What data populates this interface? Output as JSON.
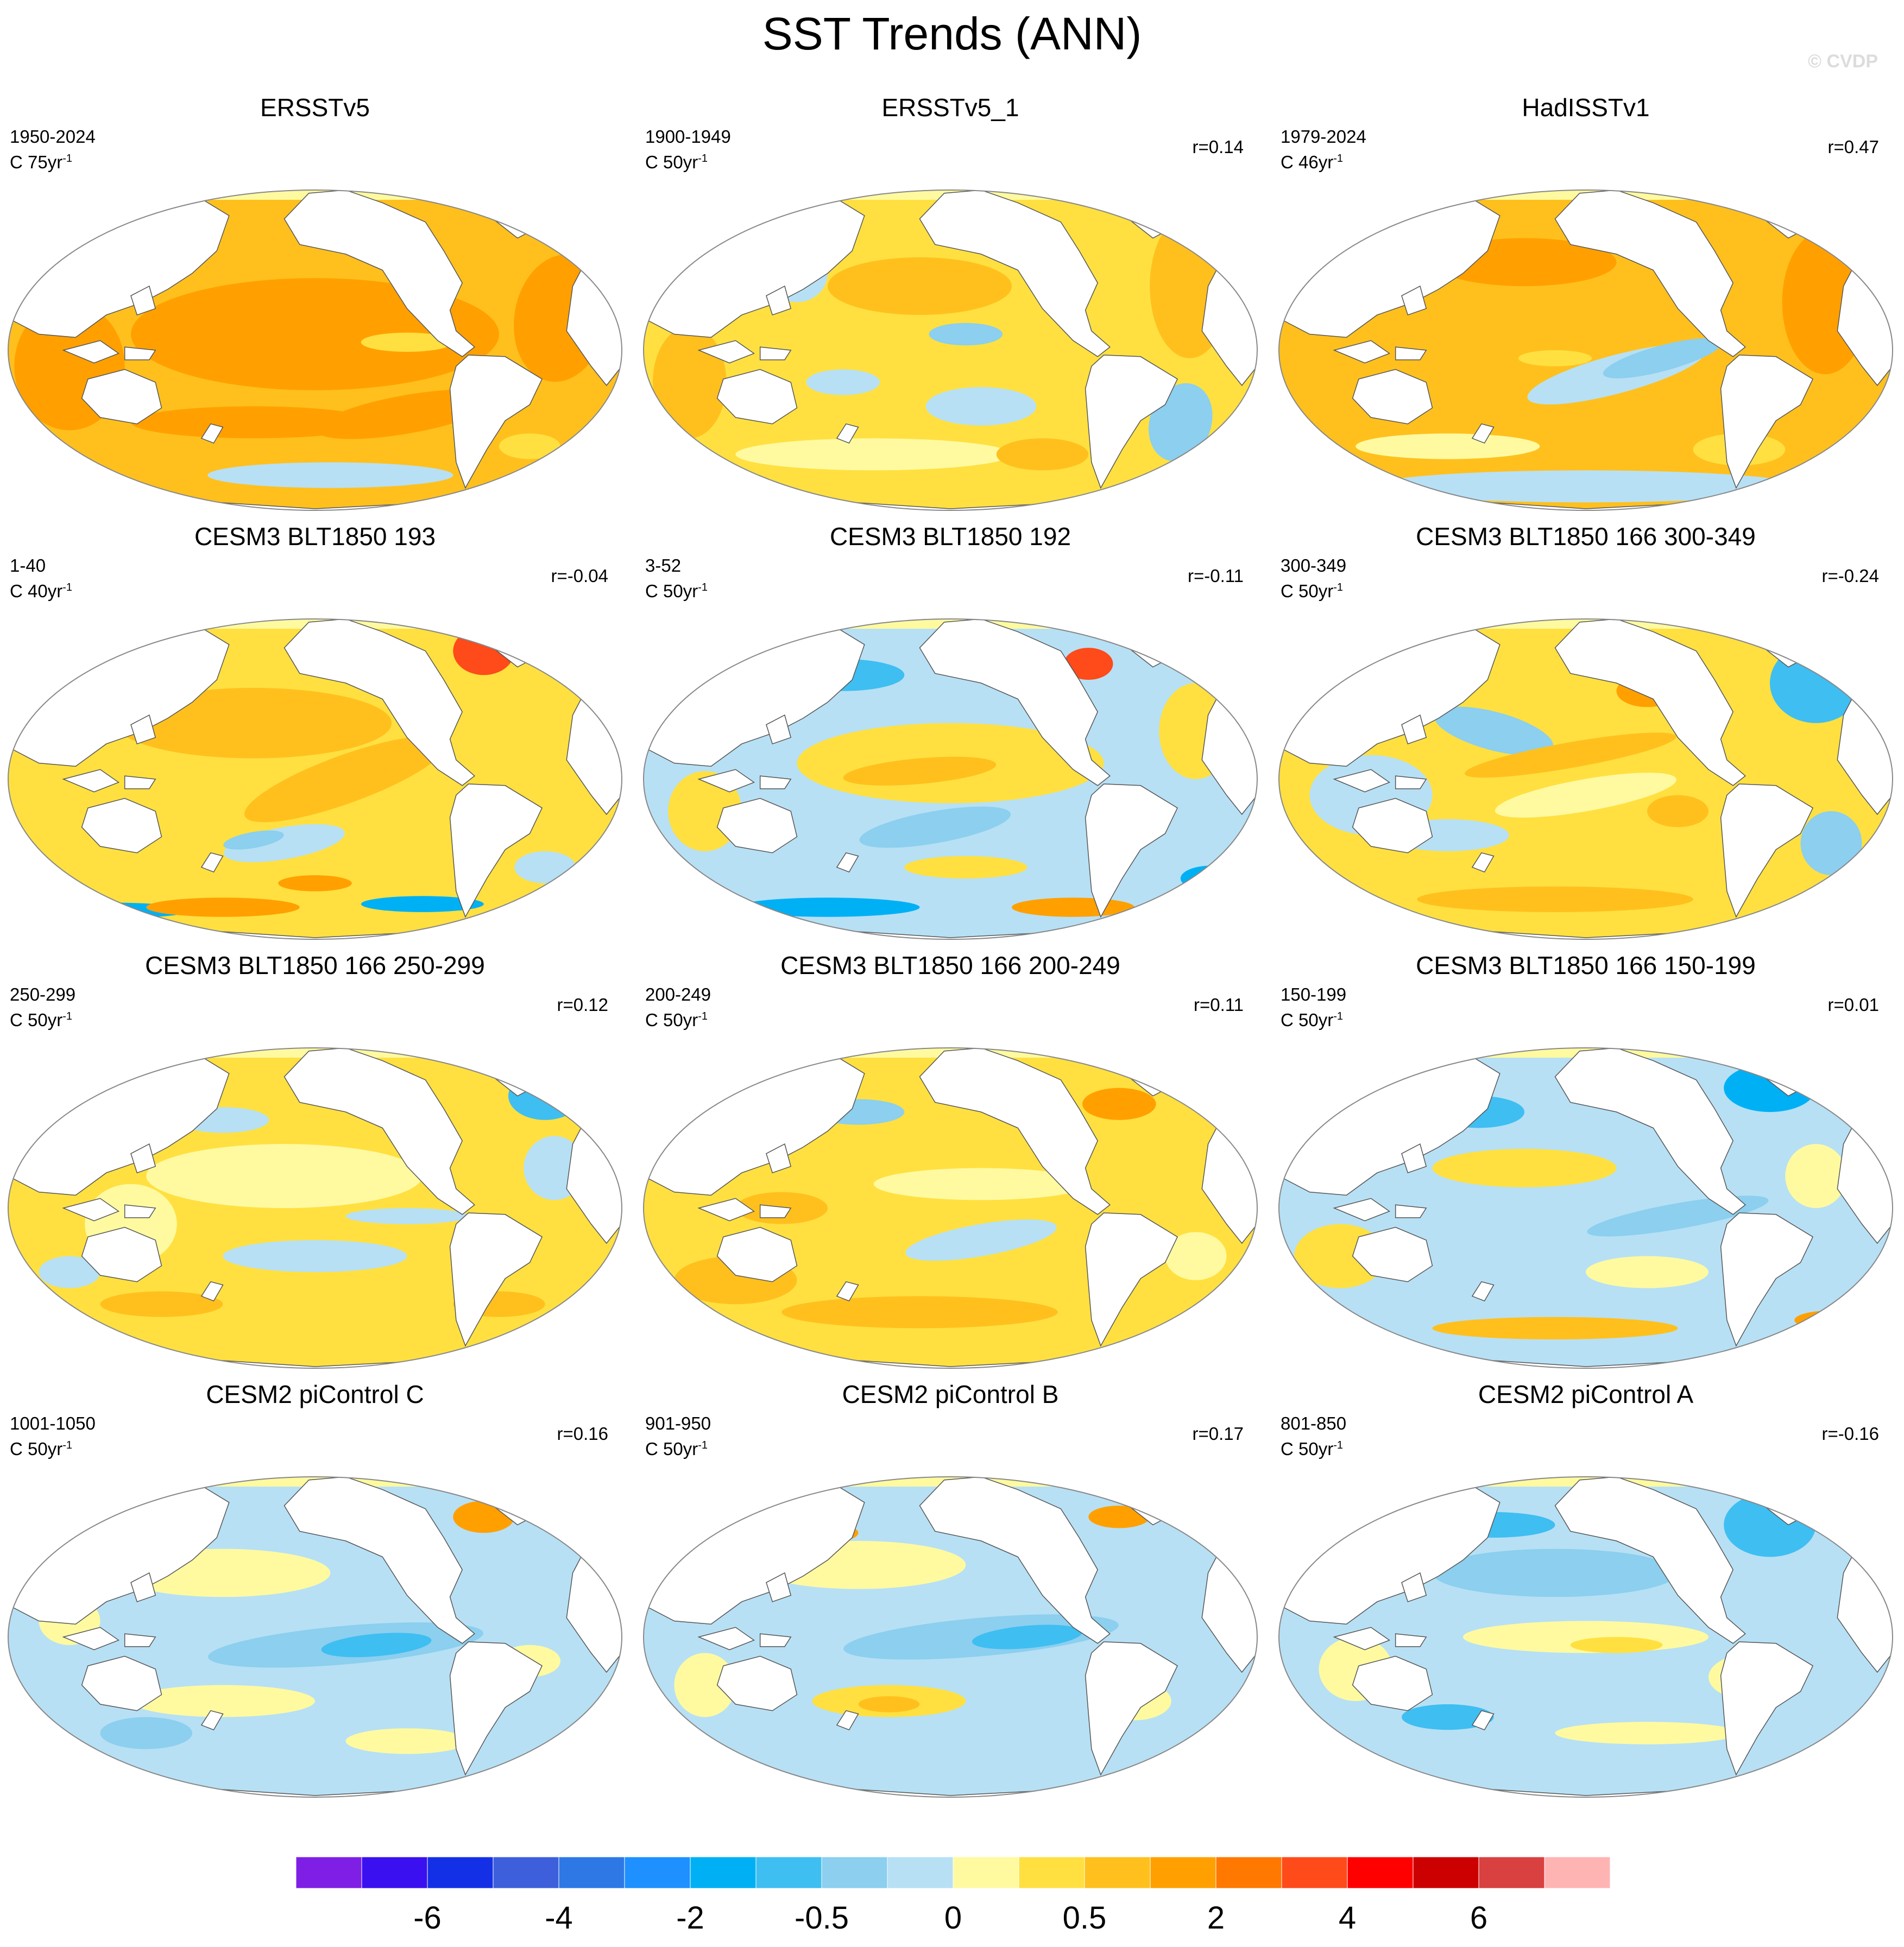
{
  "title": "SST Trends (ANN)",
  "watermark": "© CVDP",
  "panels": [
    {
      "title": "ERSSTv5",
      "period": "1950-2024",
      "units_base": "C 75yr",
      "units_exp": "-1",
      "r": "",
      "pattern": 0
    },
    {
      "title": "ERSSTv5_1",
      "period": "1900-1949",
      "units_base": "C 50yr",
      "units_exp": "-1",
      "r": "r=0.14",
      "pattern": 1
    },
    {
      "title": "HadISSTv1",
      "period": "1979-2024",
      "units_base": "C 46yr",
      "units_exp": "-1",
      "r": "r=0.47",
      "pattern": 2
    },
    {
      "title": "CESM3 BLT1850 193",
      "period": "1-40",
      "units_base": "C 40yr",
      "units_exp": "-1",
      "r": "r=-0.04",
      "pattern": 3
    },
    {
      "title": "CESM3 BLT1850 192",
      "period": "3-52",
      "units_base": "C 50yr",
      "units_exp": "-1",
      "r": "r=-0.11",
      "pattern": 4
    },
    {
      "title": "CESM3 BLT1850 166 300-349",
      "period": "300-349",
      "units_base": "C 50yr",
      "units_exp": "-1",
      "r": "r=-0.24",
      "pattern": 5
    },
    {
      "title": "CESM3 BLT1850 166 250-299",
      "period": "250-299",
      "units_base": "C 50yr",
      "units_exp": "-1",
      "r": "r=0.12",
      "pattern": 6
    },
    {
      "title": "CESM3 BLT1850 166 200-249",
      "period": "200-249",
      "units_base": "C 50yr",
      "units_exp": "-1",
      "r": "r=0.11",
      "pattern": 7
    },
    {
      "title": "CESM3 BLT1850 166 150-199",
      "period": "150-199",
      "units_base": "C 50yr",
      "units_exp": "-1",
      "r": "r=0.01",
      "pattern": 8
    },
    {
      "title": "CESM2 piControl C",
      "period": "1001-1050",
      "units_base": "C 50yr",
      "units_exp": "-1",
      "r": "r=0.16",
      "pattern": 9
    },
    {
      "title": "CESM2 piControl B",
      "period": "901-950",
      "units_base": "C 50yr",
      "units_exp": "-1",
      "r": "r=0.17",
      "pattern": 10
    },
    {
      "title": "CESM2 piControl A",
      "period": "801-850",
      "units_base": "C 50yr",
      "units_exp": "-1",
      "r": "r=-0.16",
      "pattern": 11
    }
  ],
  "colorbar": {
    "colors": [
      "#7f1fe6",
      "#3a10f0",
      "#1430e6",
      "#3d5fdc",
      "#2e78e6",
      "#1e90ff",
      "#00b0f5",
      "#3fbef2",
      "#8ccfee",
      "#b7e0f5",
      "#fffaa0",
      "#ffe040",
      "#ffc01e",
      "#ffa000",
      "#ff7800",
      "#ff4a1a",
      "#ff0000",
      "#cc0000",
      "#d94040",
      "#ffb4b4"
    ],
    "labels": [
      {
        "after_box": 2,
        "text": "-6"
      },
      {
        "after_box": 4,
        "text": "-4"
      },
      {
        "after_box": 6,
        "text": "-2"
      },
      {
        "after_box": 8,
        "text": "-0.5"
      },
      {
        "after_box": 10,
        "text": "0"
      },
      {
        "after_box": 12,
        "text": "0.5"
      },
      {
        "after_box": 14,
        "text": "2"
      },
      {
        "after_box": 16,
        "text": "4"
      },
      {
        "after_box": 18,
        "text": "6"
      }
    ]
  }
}
